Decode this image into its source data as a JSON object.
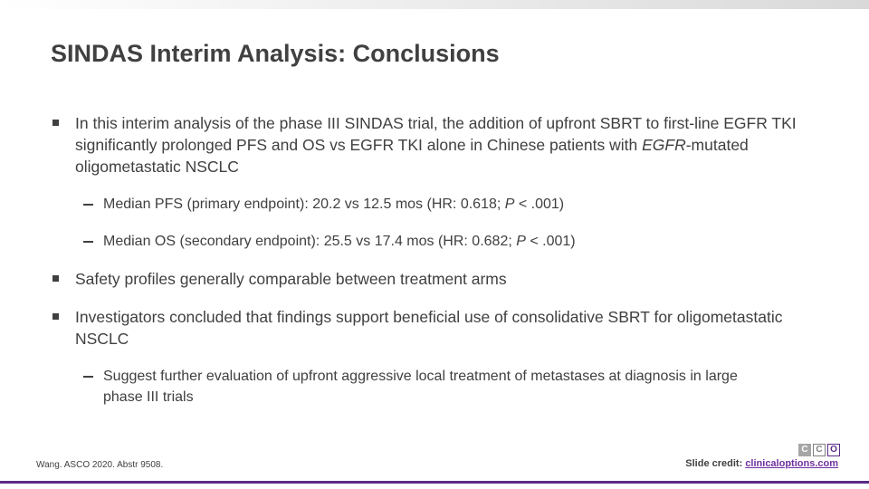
{
  "header": {
    "title": "SINDAS Interim Analysis: Conclusions"
  },
  "bullets": [
    {
      "runs": [
        {
          "text": "In this interim analysis of the phase III SINDAS trial, the addition of upfront SBRT to first-line EGFR TKI significantly prolonged PFS and OS vs EGFR TKI alone in Chinese patients with "
        },
        {
          "text": "EGFR",
          "italic": true
        },
        {
          "text": "-mutated oligometastatic NSCLC"
        }
      ],
      "sub": [
        {
          "runs": [
            {
              "text": "Median PFS (primary endpoint): 20.2 vs 12.5 mos (HR: 0.618; "
            },
            {
              "text": "P",
              "italic": true
            },
            {
              "text": " < .001)"
            }
          ]
        },
        {
          "runs": [
            {
              "text": "Median OS (secondary endpoint): 25.5 vs 17.4 mos (HR: 0.682; "
            },
            {
              "text": "P",
              "italic": true
            },
            {
              "text": " < .001)"
            }
          ]
        }
      ]
    },
    {
      "runs": [
        {
          "text": "Safety profiles generally comparable between treatment arms"
        }
      ]
    },
    {
      "runs": [
        {
          "text": "Investigators concluded that findings support beneficial use of consolidative SBRT for oligometastatic NSCLC"
        }
      ],
      "sub": [
        {
          "runs": [
            {
              "text": "Suggest further evaluation of upfront aggressive local treatment of metastases at diagnosis in large phase III trials"
            }
          ]
        }
      ]
    }
  ],
  "footer": {
    "citation": "Wang. ASCO 2020. Abstr 9508.",
    "credit_label": "Slide credit:",
    "credit_link": "clinicaloptions.com",
    "logo": [
      "C",
      "C",
      "O"
    ]
  }
}
